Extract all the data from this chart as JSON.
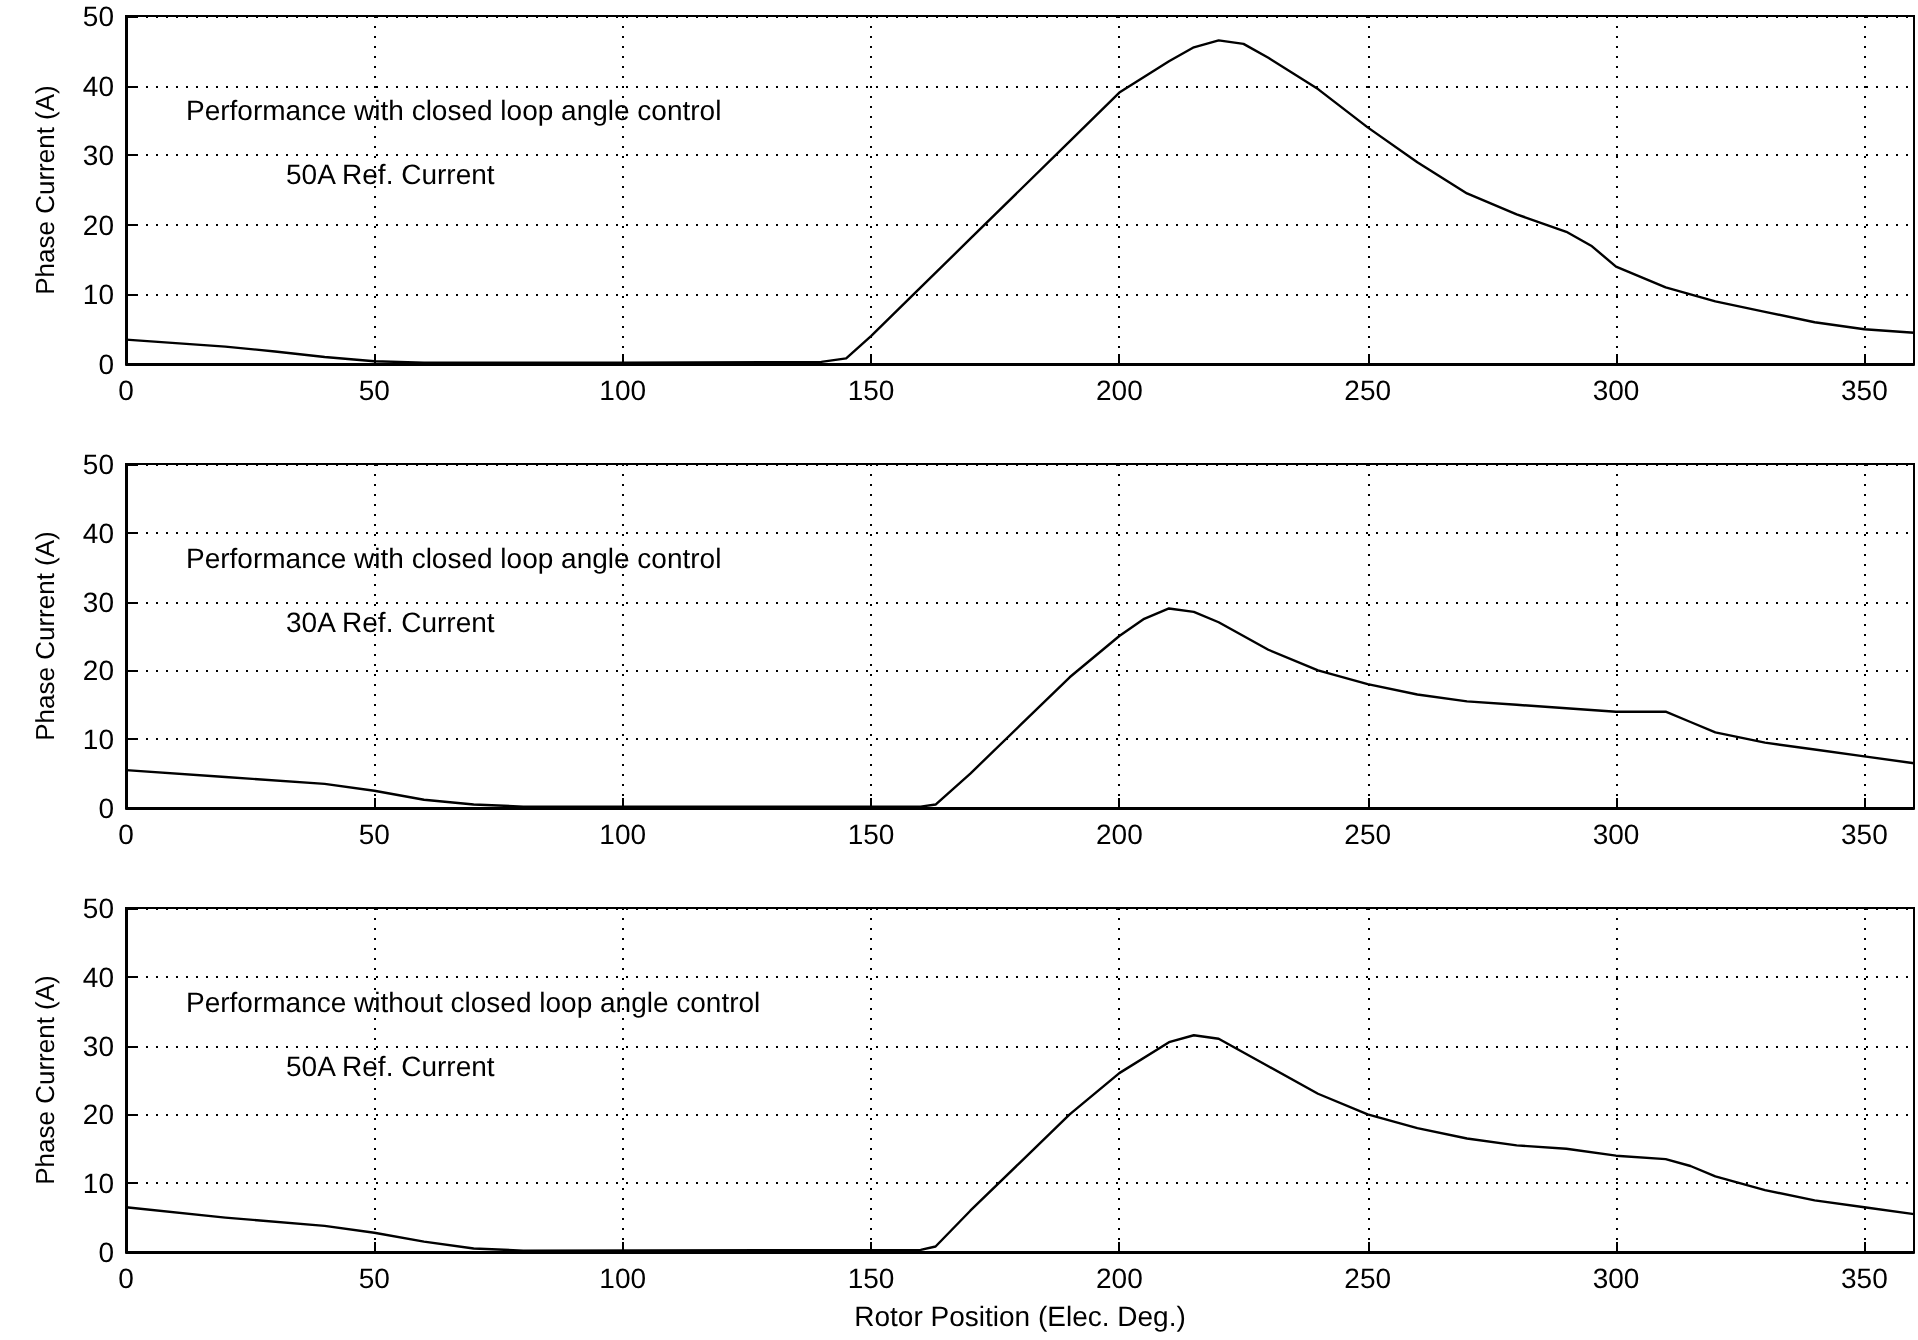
{
  "chart_data": [
    {
      "type": "line",
      "x": [
        0,
        10,
        20,
        30,
        40,
        50,
        60,
        100,
        140,
        145,
        150,
        160,
        170,
        180,
        190,
        200,
        210,
        215,
        220,
        225,
        230,
        240,
        250,
        260,
        270,
        280,
        290,
        295,
        300,
        310,
        320,
        330,
        340,
        350,
        360
      ],
      "series": [
        {
          "color": "#000000",
          "values": [
            3.5,
            3,
            2.5,
            1.8,
            1,
            0.4,
            0.2,
            0.2,
            0.3,
            0.8,
            4,
            11,
            18,
            25,
            32,
            39,
            43.5,
            45.5,
            46.5,
            46,
            44,
            39.5,
            34,
            29,
            24.5,
            21.5,
            19,
            17,
            14,
            11,
            9,
            7.5,
            6,
            5,
            4.5
          ]
        }
      ],
      "ylabel": "Phase Current (A)",
      "xlim": [
        0,
        360
      ],
      "xticks": [
        0,
        50,
        100,
        150,
        200,
        250,
        300,
        350
      ],
      "ylim": [
        0,
        50
      ],
      "yticks": [
        0,
        10,
        20,
        30,
        40,
        50
      ],
      "grid": true,
      "annotations": [
        "Performance with closed loop angle control",
        "50A Ref. Current"
      ]
    },
    {
      "type": "line",
      "x": [
        0,
        20,
        40,
        50,
        60,
        70,
        80,
        160,
        163,
        170,
        180,
        190,
        200,
        205,
        210,
        215,
        220,
        230,
        240,
        250,
        260,
        270,
        280,
        290,
        300,
        310,
        315,
        320,
        330,
        340,
        350,
        360
      ],
      "series": [
        {
          "color": "#000000",
          "values": [
            5.5,
            4.5,
            3.5,
            2.5,
            1.2,
            0.5,
            0.2,
            0.2,
            0.5,
            5,
            12,
            19,
            25,
            27.5,
            29,
            28.5,
            27,
            23,
            20,
            18,
            16.5,
            15.5,
            15,
            14.5,
            14,
            14,
            12.5,
            11,
            9.5,
            8.5,
            7.5,
            6.5
          ]
        }
      ],
      "ylabel": "Phase Current (A)",
      "xlim": [
        0,
        360
      ],
      "xticks": [
        0,
        50,
        100,
        150,
        200,
        250,
        300,
        350
      ],
      "ylim": [
        0,
        50
      ],
      "yticks": [
        0,
        10,
        20,
        30,
        40,
        50
      ],
      "grid": true,
      "annotations": [
        "Performance with closed loop angle control",
        "30A Ref. Current"
      ]
    },
    {
      "type": "line",
      "x": [
        0,
        20,
        40,
        50,
        60,
        70,
        80,
        160,
        163,
        170,
        180,
        190,
        200,
        210,
        215,
        220,
        230,
        240,
        250,
        260,
        270,
        280,
        290,
        300,
        310,
        315,
        320,
        330,
        340,
        350,
        360
      ],
      "series": [
        {
          "color": "#000000",
          "values": [
            6.5,
            5,
            3.8,
            2.8,
            1.5,
            0.5,
            0.2,
            0.3,
            0.8,
            6,
            13,
            20,
            26,
            30.5,
            31.5,
            31,
            27,
            23,
            20,
            18,
            16.5,
            15.5,
            15,
            14,
            13.5,
            12.5,
            11,
            9,
            7.5,
            6.5,
            5.5
          ]
        }
      ],
      "ylabel": "Phase Current (A)",
      "xlabel": "Rotor Position (Elec. Deg.)",
      "xlim": [
        0,
        360
      ],
      "xticks": [
        0,
        50,
        100,
        150,
        200,
        250,
        300,
        350
      ],
      "ylim": [
        0,
        50
      ],
      "yticks": [
        0,
        10,
        20,
        30,
        40,
        50
      ],
      "grid": true,
      "annotations": [
        "Performance without closed loop angle control",
        "50A Ref. Current"
      ]
    }
  ]
}
